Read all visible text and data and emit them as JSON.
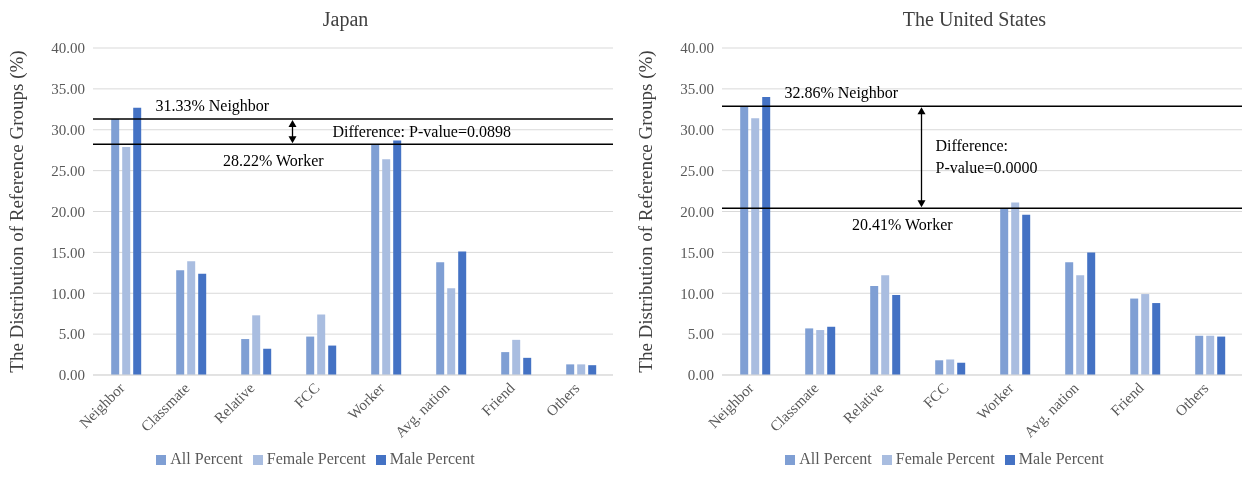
{
  "chart_data": [
    {
      "type": "bar",
      "title": "Japan",
      "ylabel": "The Distribution of Reference Groups (%)",
      "categories": [
        "Neighbor",
        "Classmate",
        "Relative",
        "FCC",
        "Worker",
        "Avg. nation",
        "Friend",
        "Others"
      ],
      "series": [
        {
          "name": "All Percent",
          "color": "#7f9fd4",
          "values": [
            31.33,
            12.8,
            4.4,
            4.7,
            28.22,
            13.8,
            2.8,
            1.3
          ]
        },
        {
          "name": "Female Percent",
          "color": "#a9bde0",
          "values": [
            27.9,
            13.9,
            7.3,
            7.4,
            26.4,
            10.6,
            4.3,
            1.3
          ]
        },
        {
          "name": "Male Percent",
          "color": "#4472c4",
          "values": [
            32.7,
            12.4,
            3.2,
            3.6,
            28.7,
            15.1,
            2.1,
            1.2
          ]
        }
      ],
      "ylim": [
        0,
        40
      ],
      "yticks": [
        {
          "value": 0,
          "label": "0.00"
        },
        {
          "value": 5,
          "label": "5.00"
        },
        {
          "value": 10,
          "label": "10.00"
        },
        {
          "value": 15,
          "label": "15.00"
        },
        {
          "value": 20,
          "label": "20.00"
        },
        {
          "value": 25,
          "label": "25.00"
        },
        {
          "value": 30,
          "label": "30.00"
        },
        {
          "value": 35,
          "label": "35.00"
        },
        {
          "value": 40,
          "label": "40.00"
        }
      ],
      "grid": "y",
      "legend": "bottom",
      "ref_lines": [
        {
          "axis": "y",
          "value": 31.33,
          "label": "31.33% Neighbor",
          "color": "#000000"
        },
        {
          "axis": "y",
          "value": 28.22,
          "label": "28.22% Worker",
          "color": "#000000"
        }
      ],
      "annotations": [
        "Difference: P-value=0.0898"
      ]
    },
    {
      "type": "bar",
      "title": "The United States",
      "ylabel": "The Distribution of Reference Groups (%)",
      "categories": [
        "Neighbor",
        "Classmate",
        "Relative",
        "FCC",
        "Worker",
        "Avg. nation",
        "Friend",
        "Others"
      ],
      "series": [
        {
          "name": "All Percent",
          "color": "#7f9fd4",
          "values": [
            32.86,
            5.7,
            10.9,
            1.8,
            20.41,
            13.8,
            9.35,
            4.8
          ]
        },
        {
          "name": "Female Percent",
          "color": "#a9bde0",
          "values": [
            31.4,
            5.5,
            12.2,
            1.9,
            21.1,
            12.2,
            9.9,
            4.8
          ]
        },
        {
          "name": "Male Percent",
          "color": "#4472c4",
          "values": [
            34.0,
            5.9,
            9.8,
            1.5,
            19.6,
            15.0,
            8.8,
            4.7
          ]
        }
      ],
      "ylim": [
        0,
        40
      ],
      "yticks": [
        {
          "value": 0,
          "label": "0.00"
        },
        {
          "value": 5,
          "label": "5.00"
        },
        {
          "value": 10,
          "label": "10.00"
        },
        {
          "value": 15,
          "label": "15.00"
        },
        {
          "value": 20,
          "label": "20.00"
        },
        {
          "value": 25,
          "label": "25.00"
        },
        {
          "value": 30,
          "label": "30.00"
        },
        {
          "value": 35,
          "label": "35.00"
        },
        {
          "value": 40,
          "label": "40.00"
        }
      ],
      "grid": "y",
      "legend": "bottom",
      "ref_lines": [
        {
          "axis": "y",
          "value": 32.86,
          "label": "32.86% Neighbor",
          "color": "#000000"
        },
        {
          "axis": "y",
          "value": 20.41,
          "label": "20.41% Worker",
          "color": "#000000"
        }
      ],
      "annotations": [
        "Difference:\nP-value=0.0000"
      ]
    }
  ]
}
